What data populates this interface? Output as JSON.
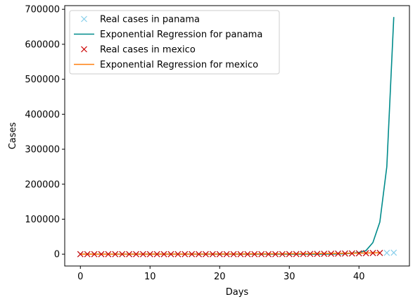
{
  "chart_data": {
    "type": "line",
    "xlabel": "Days",
    "ylabel": "Cases",
    "xlim": [
      -2.25,
      47.25
    ],
    "ylim": [
      -33830,
      710500
    ],
    "xticks": [
      0,
      10,
      20,
      30,
      40
    ],
    "yticks": [
      0,
      100000,
      200000,
      300000,
      400000,
      500000,
      600000,
      700000
    ],
    "legend_position": "upper left",
    "series": [
      {
        "name": "Real cases in panama",
        "style": "marker-x",
        "color": "#87ceeb",
        "x": [
          0,
          1,
          2,
          3,
          4,
          5,
          6,
          7,
          8,
          9,
          10,
          11,
          12,
          13,
          14,
          15,
          16,
          17,
          18,
          19,
          20,
          21,
          22,
          23,
          24,
          25,
          26,
          27,
          28,
          29,
          30,
          31,
          32,
          33,
          34,
          35,
          36,
          37,
          38,
          39,
          40,
          41,
          42,
          43,
          44,
          45
        ],
        "y": [
          1,
          1,
          1,
          1,
          1,
          1,
          1,
          1,
          1,
          1,
          1,
          1,
          1,
          1,
          1,
          1,
          1,
          1,
          1,
          1,
          1,
          1,
          1,
          1,
          1,
          1,
          1,
          1,
          1,
          1,
          200,
          400,
          600,
          800,
          1000,
          1200,
          1400,
          1700,
          2000,
          2300,
          2600,
          2900,
          3200,
          3500,
          3800,
          4200
        ]
      },
      {
        "name": "Exponential Regression for panama",
        "style": "line",
        "color": "#008b8b",
        "x": [
          0,
          1,
          2,
          3,
          4,
          5,
          6,
          7,
          8,
          9,
          10,
          11,
          12,
          13,
          14,
          15,
          16,
          17,
          18,
          19,
          20,
          21,
          22,
          23,
          24,
          25,
          26,
          27,
          28,
          29,
          30,
          31,
          32,
          33,
          34,
          35,
          36,
          37,
          38,
          39,
          40,
          41,
          42,
          43,
          44,
          45
        ],
        "y": [
          0,
          0,
          0,
          0,
          0,
          0,
          0,
          0,
          0,
          0,
          0,
          0,
          0,
          0,
          0,
          0,
          0,
          0,
          0,
          0,
          0,
          0,
          0,
          0,
          0,
          0,
          0,
          0,
          0,
          0,
          5,
          10,
          20,
          40,
          80,
          160,
          320,
          640,
          1300,
          2600,
          5000,
          10000,
          33000,
          92000,
          250000,
          678000
        ]
      },
      {
        "name": "Real cases in mexico",
        "style": "marker-x",
        "color": "#cc0000",
        "x": [
          0,
          1,
          2,
          3,
          4,
          5,
          6,
          7,
          8,
          9,
          10,
          11,
          12,
          13,
          14,
          15,
          16,
          17,
          18,
          19,
          20,
          21,
          22,
          23,
          24,
          25,
          26,
          27,
          28,
          29,
          30,
          31,
          32,
          33,
          34,
          35,
          36,
          37,
          38,
          39,
          40,
          41,
          42,
          43
        ],
        "y": [
          1,
          1,
          1,
          1,
          1,
          1,
          1,
          1,
          1,
          1,
          1,
          1,
          1,
          1,
          1,
          1,
          1,
          1,
          1,
          1,
          1,
          1,
          1,
          1,
          1,
          1,
          1,
          1,
          1,
          100,
          200,
          300,
          450,
          600,
          800,
          1000,
          1200,
          1450,
          1700,
          2000,
          2400,
          2800,
          3200,
          3500
        ]
      },
      {
        "name": "Exponential Regression for mexico",
        "style": "line",
        "color": "#ff7f0e",
        "x": [
          0,
          1,
          2,
          3,
          4,
          5,
          6,
          7,
          8,
          9,
          10,
          11,
          12,
          13,
          14,
          15,
          16,
          17,
          18,
          19,
          20,
          21,
          22,
          23,
          24,
          25,
          26,
          27,
          28,
          29,
          30,
          31,
          32,
          33,
          34,
          35,
          36,
          37,
          38,
          39,
          40,
          41,
          42,
          43
        ],
        "y": [
          50,
          60,
          70,
          80,
          90,
          100,
          110,
          125,
          140,
          155,
          170,
          190,
          210,
          230,
          255,
          280,
          310,
          340,
          375,
          410,
          450,
          495,
          545,
          600,
          660,
          725,
          800,
          880,
          970,
          1065,
          1170,
          1290,
          1420,
          1560,
          1720,
          1890,
          2080,
          2290,
          2520,
          2770,
          3050,
          3350,
          3690,
          4060
        ]
      }
    ]
  }
}
